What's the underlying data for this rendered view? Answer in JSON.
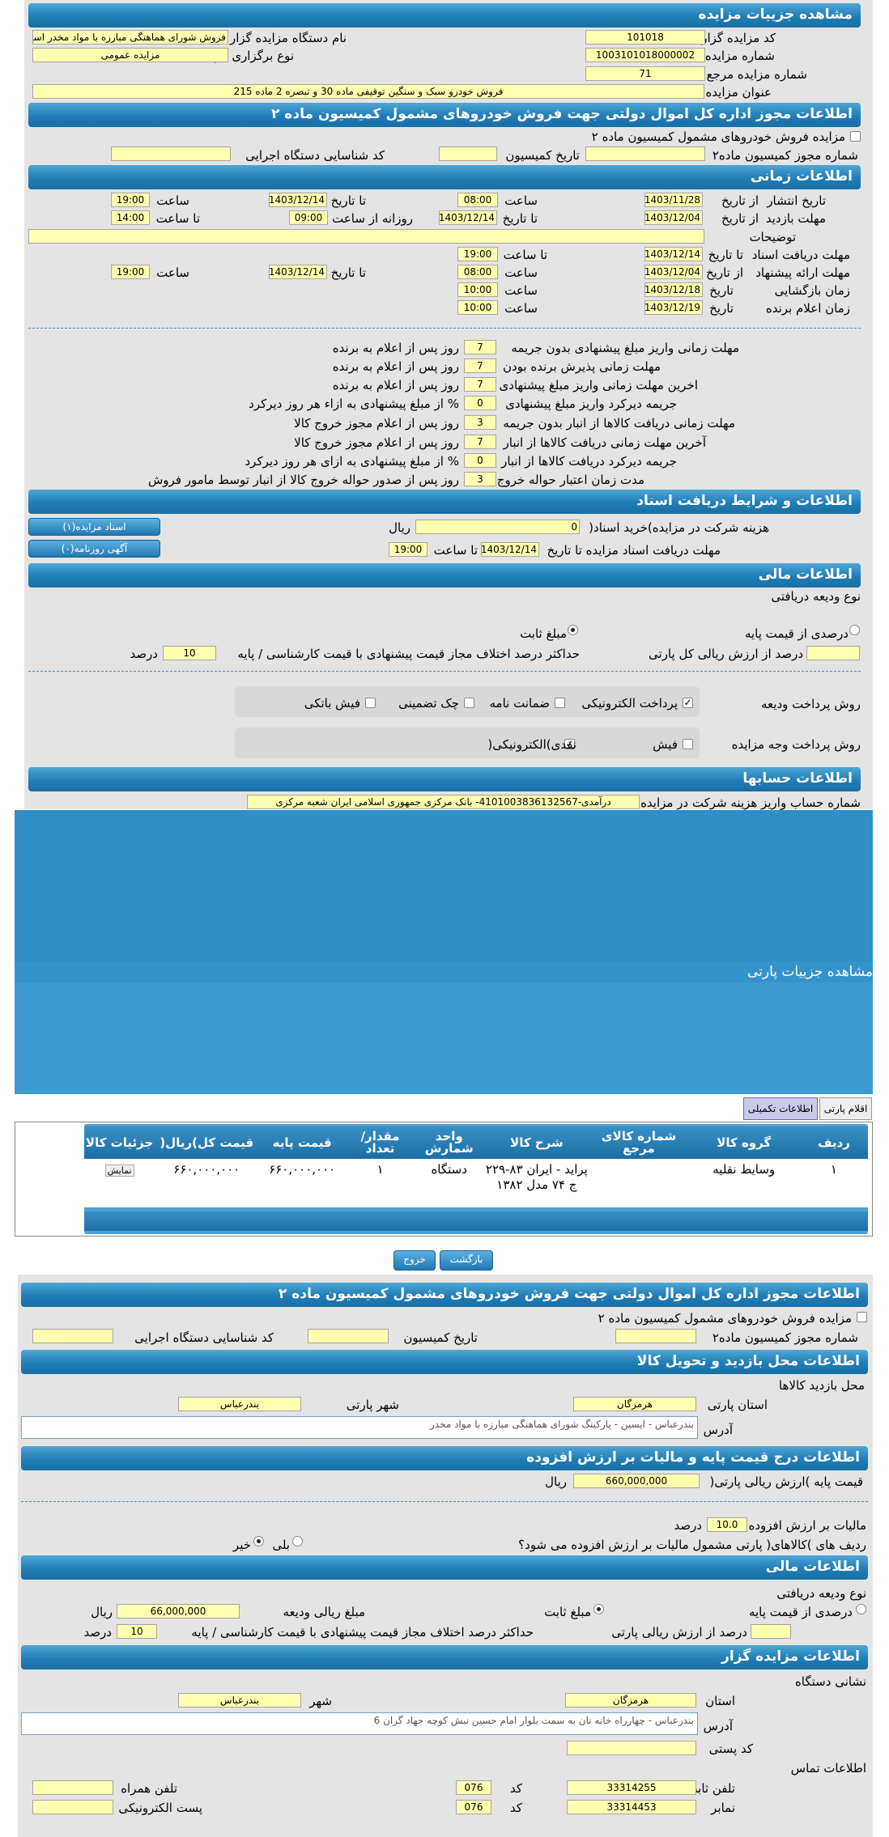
{
  "auction_details": {
    "title": "مشاهده جزییات مزایده",
    "code_label": "کد مزایده گزار",
    "code": "101018",
    "org_label": "نام دستگاه مزایده گزار",
    "org": "فروش شورای هماهنگی مبارزه با مواد مخدر استان",
    "number_label": "شماره مزایده",
    "number": "1003101018000002",
    "type_label": "نوع برگزاری مزایده",
    "type": "مزایده عمومی",
    "ref_label": "شماره مزایده مرجع",
    "ref": "71",
    "subject_label": "عنوان مزایده",
    "subject": "فروش خودرو سبک و سنگین توقیفی ماده 30 و تبصره 2 ماده 215"
  },
  "permit": {
    "title": "اطلاعات مجوز اداره کل اموال دولتی جهت فروش خودروهای مشمول کمیسیون ماده ۲",
    "checkbox_label": "مزایده فروش خودروهای مشمول کمیسیون ماده ۲",
    "permit_no_label": "شماره مجوز کمیسیون ماده۲",
    "commission_date_label": "تاریخ کمیسیون",
    "exec_id_label": "کد شناسایی دستگاه اجرایی"
  },
  "time_info": {
    "title": "اطلاعات زمانی",
    "publish_label": "تاریخ انتشار",
    "from_date_label": "از تاریخ",
    "to_date_label": "تا تاریخ",
    "time_label": "ساعت",
    "to_time_label": "تا ساعت",
    "daily_from_label": "روزانه از ساعت",
    "publish_from": "1403/11/28",
    "publish_time1": "08:00",
    "publish_to": "1403/12/14",
    "publish_time2": "19:00",
    "visit_label": "مهلت بازدید",
    "visit_from": "1403/12/04",
    "visit_to": "1403/12/14",
    "visit_daily": "09:00",
    "visit_to_time": "14:00",
    "desc_label": "توضیحات",
    "doc_label": "مهلت دریافت اسناد",
    "doc_to": "1403/12/14",
    "doc_time": "19:00",
    "offer_label": "مهلت ارائه پیشنهاد",
    "offer_from": "1403/12/04",
    "offer_time": "08:00",
    "offer_to": "1403/12/14",
    "offer_time2": "19:00",
    "open_label": "زمان بازگشایی",
    "date_label": "تاریخ",
    "open_date": "1403/12/18",
    "open_time": "10:00",
    "winner_label": "زمان اعلام برنده",
    "winner_date": "1403/12/19",
    "winner_time": "10:00"
  },
  "deadlines": [
    {
      "label": "مهلت زمانی واریز مبلغ پیشنهادی بدون جریمه",
      "value": "7",
      "suffix": "روز پس از اعلام به برنده"
    },
    {
      "label": "مهلت زمانی پذیرش برنده بودن",
      "value": "7",
      "suffix": "روز پس از اعلام به برنده"
    },
    {
      "label": "اخرین مهلت زمانی واریز مبلغ پیشنهادی",
      "value": "7",
      "suffix": "روز پس از اعلام به برنده"
    },
    {
      "label": "جریمه دیرکرد واریز مبلغ پیشنهادی",
      "value": "0",
      "suffix": "% از مبلغ پیشنهادی به ازاء هر روز دیرکرد"
    },
    {
      "label": "مهلت زمانی دریافت کالاها از انبار بدون جریمه",
      "value": "3",
      "suffix": "روز پس از اعلام مجوز خروج کالا"
    },
    {
      "label": "آخرین مهلت زمانی دریافت کالاها از انبار",
      "value": "7",
      "suffix": "روز پس از اعلام مجوز خروج کالا"
    },
    {
      "label": "جریمه دیرکرد دریافت کالاها از انبار",
      "value": "0",
      "suffix": "% از مبلغ پیشنهادی به ازای هر روز دیرکرد"
    },
    {
      "label": "مدت زمان اعتبار حواله خروج",
      "value": "3",
      "suffix": "روز پس از صدور حواله خروج کالا از انبار توسط مامور فروش"
    }
  ],
  "docs": {
    "title": "اطلاعات و شرایط دریافت اسناد",
    "fee_label": "هزینه شرکت در مزایده)خرید اسناد(",
    "fee": "0",
    "rial": "ریال",
    "deadline_label": "مهلت دریافت اسناد مزایده تا تاریخ",
    "deadline_date": "1403/12/14",
    "to_time_label": "تا ساعت",
    "deadline_time": "19:00",
    "btn_docs": "اسناد مزایده(۱)",
    "btn_ad": "آگهی روزنامه(۰)"
  },
  "finance": {
    "title": "اطلاعات مالی",
    "deposit_type_label": "نوع ودیعه دریافتی",
    "percent_base": "درصدی از قیمت پایه",
    "fixed": "مبلغ ثابت",
    "percent_value_label": "درصد از ارزش ریالی کل پارتی",
    "max_diff_label": "حداکثر درصد اختلاف مجاز قیمت پیشنهادی با قیمت کارشناسی / پایه",
    "max_diff": "10",
    "percent": "درصد",
    "deposit_pay_label": "روش پرداخت ودیعه",
    "pay_opts": [
      "پرداخت الکترونیکی",
      "ضمانت نامه",
      "چک تضمینی",
      "فیش باتکی"
    ],
    "auction_pay_label": "روش پرداخت وجه مزایده",
    "fish": "فیش",
    "cash": "نقدی)الکترونیکی("
  },
  "accounts": {
    "title": "اطلاعات حسابها",
    "label": "شماره حساب واریز هزینه شرکت در مزایده",
    "value": "درآمدی-4101003836132567- بانک مرکزی جمهوری اسلامی ایران شعبه مرکزی"
  },
  "party": {
    "title": "مشاهده جزییات پارتی",
    "tab_items": "اقلام پارتی",
    "tab_extra": "اطلاعات تکمیلی",
    "headers": [
      "ردیف",
      "گروه کالا",
      "شماره کالای مرجع",
      "شرح کالا",
      "واحد شمارش",
      "مقدار/ تعداد",
      "قیمت پایه",
      "قیمت کل)ریال(",
      "جزئیات کالا"
    ],
    "rows": [
      [
        "١",
        "وسایط نقلیه",
        "",
        "پراید - ایران ۸۳-۲۲۹ ج ۷۴ مدل ۱۳۸۲",
        "دستگاه",
        "١",
        "۶۶۰,۰۰۰,۰۰۰",
        "۶۶۰,۰۰۰,۰۰۰",
        "نمایش"
      ]
    ],
    "btn_back": "بازگشت",
    "btn_exit": "خروج"
  },
  "permit2": {
    "title": "اطلاعات مجوز اداره کل اموال دولتی جهت فروش خودروهای مشمول کمیسیون ماده ۲",
    "checkbox_label": "مزایده فروش خودروهای مشمول کمیسیون ماده ۲",
    "permit_no_label": "شماره مجوز کمیسیون ماده۲",
    "commission_date_label": "تاریخ کمیسیون",
    "exec_id_label": "کد شناسایی دستگاه اجرایی"
  },
  "visit_place": {
    "title": "اطلاعات محل بازدید و تحویل کالا",
    "place_label": "محل بازدید کالاها",
    "province_label": "استان پارتی",
    "province": "هرمزگان",
    "city_label": "شهر پارتی",
    "city": "بندرعباس",
    "address_label": "آدرس",
    "address": "بندرعباس - ایسین - پارکینگ شورای هماهنگی مبارزه با مواد مخدر"
  },
  "price": {
    "title": "اطلاعات درج قیمت پایه و مالیات بر ارزش افزوده",
    "base_label": "قیمت پایه )ارزش ریالی پارتی(",
    "base": "660,000,000",
    "rial": "ریال",
    "vat_label": "مالیات بر ارزش افزوده",
    "vat": "10.0",
    "percent": "درصد",
    "vat_q": "ردیف های )کالاهای( پارتی مشمول مالیات بر ارزش افزوده می شود؟",
    "yes": "بلی",
    "no": "خیر"
  },
  "finance2": {
    "title": "اطلاعات مالی",
    "deposit_type_label": "نوع ودیعه دریافتی",
    "percent_base": "درصدی از قیمت پایه",
    "fixed": "مبلغ ثابت",
    "amount_label": "مبلغ ریالی ودیعه",
    "amount": "66,000,000",
    "rial": "ریال",
    "percent_value_label": "درصد از ارزش ریالی پارتی",
    "max_diff_label": "حداکثر درصد اختلاف مجاز قیمت پیشنهادی با قیمت کارشناسی / پایه",
    "max_diff": "10",
    "percent": "درصد"
  },
  "auctioneer": {
    "title": "اطلاعات مزایده گزار",
    "address_title": "نشانی دستگاه",
    "province_label": "استان",
    "province": "هرمزگان",
    "city_label": "شهر",
    "city": "بندرعباس",
    "address_label": "آدرس",
    "address": "بندرعباس - چهارراه خانه نان به سمت بلوار امام حسین نبش کوچه جهاد گران 6",
    "postal_label": "کد پستی",
    "contact_title": "اطلاعات تماس",
    "phone_label": "تلفن ثابت",
    "phone": "33314255",
    "code_label": "کد",
    "phone_code": "076",
    "mobile_label": "تلفن همراه",
    "fax_label": "نمابر",
    "fax": "33314453",
    "fax_code": "076",
    "email_label": "پست الکترونیکی"
  }
}
